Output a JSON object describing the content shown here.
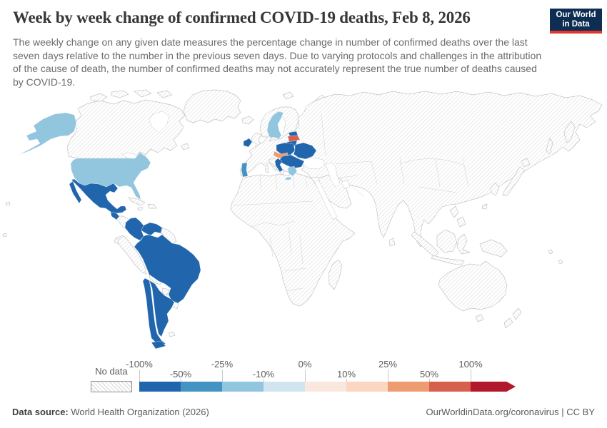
{
  "header": {
    "title": "Week by week change of confirmed COVID-19 deaths, Feb 8, 2026",
    "subtitle": "The weekly change on any given date measures the percentage change in number of confirmed deaths over the last seven days relative to the number in the previous seven days. Due to varying protocols and challenges in the attribution of the cause of death, the number of confirmed deaths may not accurately represent the true number of deaths caused by COVID-19.",
    "logo": {
      "line1": "Our World",
      "line2": "in Data",
      "bg_color": "#0d2e52",
      "accent_color": "#e0362c"
    }
  },
  "map": {
    "border_color": "#c4c4c4",
    "no_data_fill": "diagonal-hatch",
    "regions": {
      "united_states": {
        "label": "United States",
        "color": "#92c5de"
      },
      "sweden": {
        "label": "Sweden",
        "color": "#92c5de"
      },
      "greece": {
        "label": "Greece",
        "color": "#92c5de"
      },
      "portugal": {
        "label": "Portugal",
        "color": "#4393c3"
      },
      "mexico": {
        "label": "Mexico",
        "color": "#2166ac"
      },
      "guatemala": {
        "label": "Guatemala",
        "color": "#2166ac"
      },
      "colombia": {
        "label": "Colombia",
        "color": "#2166ac"
      },
      "venezuela": {
        "label": "Venezuela",
        "color": "#2166ac"
      },
      "brazil": {
        "label": "Brazil",
        "color": "#2166ac"
      },
      "chile": {
        "label": "Chile",
        "color": "#2166ac"
      },
      "argentina": {
        "label": "Argentina",
        "color": "#2166ac"
      },
      "ireland": {
        "label": "Ireland",
        "color": "#2166ac"
      },
      "estonia": {
        "label": "Estonia",
        "color": "#2166ac"
      },
      "lithuania": {
        "label": "Lithuania",
        "color": "#2166ac"
      },
      "poland": {
        "label": "Poland",
        "color": "#2166ac"
      },
      "ukraine": {
        "label": "Ukraine",
        "color": "#2166ac"
      },
      "balkans": {
        "label": "Hungary, Romania, Serbia & Bulgaria",
        "color": "#2166ac"
      },
      "croatia": {
        "label": "Croatia",
        "color": "#2166ac"
      },
      "latvia": {
        "label": "Latvia",
        "color": "#d6604d"
      },
      "czechia_slovakia": {
        "label": "Czechia & Slovakia",
        "color": "#ef9b72"
      }
    }
  },
  "legend": {
    "no_data_label": "No data",
    "bins": [
      {
        "range": "-100% to -50%",
        "color": "#2166ac",
        "arrow": false
      },
      {
        "range": "-50% to -25%",
        "color": "#4393c3",
        "arrow": false
      },
      {
        "range": "-25% to -10%",
        "color": "#92c5de",
        "arrow": false
      },
      {
        "range": "-10% to 0%",
        "color": "#d1e5f0",
        "arrow": false
      },
      {
        "range": "0% to 10%",
        "color": "#fae8de",
        "arrow": false
      },
      {
        "range": "10% to 25%",
        "color": "#fbd6c0",
        "arrow": false
      },
      {
        "range": "25% to 50%",
        "color": "#ef9b72",
        "arrow": false
      },
      {
        "range": "50% to 100%",
        "color": "#d6604d",
        "arrow": false
      },
      {
        "range": "over 100%",
        "color": "#b2182b",
        "arrow": true
      }
    ],
    "ticks": [
      {
        "label": "-100%",
        "row": "top"
      },
      {
        "label": "-50%",
        "row": "bottom"
      },
      {
        "label": "-25%",
        "row": "top"
      },
      {
        "label": "-10%",
        "row": "bottom"
      },
      {
        "label": "0%",
        "row": "top"
      },
      {
        "label": "10%",
        "row": "bottom"
      },
      {
        "label": "25%",
        "row": "top"
      },
      {
        "label": "50%",
        "row": "bottom"
      },
      {
        "label": "100%",
        "row": "top"
      }
    ]
  },
  "footer": {
    "source_label": "Data source:",
    "source_value": " World Health Organization (2026)",
    "url": "OurWorldinData.org/coronavirus",
    "separator": " | ",
    "license": "CC BY"
  },
  "chart_data": {
    "type": "choropleth",
    "title": "Week by week change of confirmed COVID-19 deaths",
    "date": "Feb 8, 2026",
    "unit": "percentage change in weekly confirmed deaths vs previous week",
    "legend_bins": [
      "-100% to -50%",
      "-50% to -25%",
      "-25% to -10%",
      "-10% to 0%",
      "0% to 10%",
      "10% to 25%",
      "25% to 50%",
      "50% to 100%",
      "over 100%"
    ],
    "bin_colors": [
      "#2166ac",
      "#4393c3",
      "#92c5de",
      "#d1e5f0",
      "#fae8de",
      "#fbd6c0",
      "#ef9b72",
      "#d6604d",
      "#b2182b"
    ],
    "values_by_region": {
      "United States": "-25% to -10%",
      "Sweden": "-25% to -10%",
      "Greece": "-25% to -10%",
      "Portugal": "-50% to -25%",
      "Mexico": "-100% to -50%",
      "Guatemala": "-100% to -50%",
      "Colombia": "-100% to -50%",
      "Venezuela": "-100% to -50%",
      "Brazil": "-100% to -50%",
      "Chile": "-100% to -50%",
      "Argentina": "-100% to -50%",
      "Ireland": "-100% to -50%",
      "Estonia": "-100% to -50%",
      "Lithuania": "-100% to -50%",
      "Poland": "-100% to -50%",
      "Ukraine": "-100% to -50%",
      "Hungary": "-100% to -50%",
      "Romania": "-100% to -50%",
      "Serbia": "-100% to -50%",
      "Bulgaria": "-100% to -50%",
      "Croatia": "-100% to -50%",
      "Latvia": "50% to 100%",
      "Czechia": "25% to 50%",
      "Slovakia": "25% to 50%",
      "all_other_countries": "No data"
    },
    "legend_position": "bottom",
    "grid": false
  }
}
